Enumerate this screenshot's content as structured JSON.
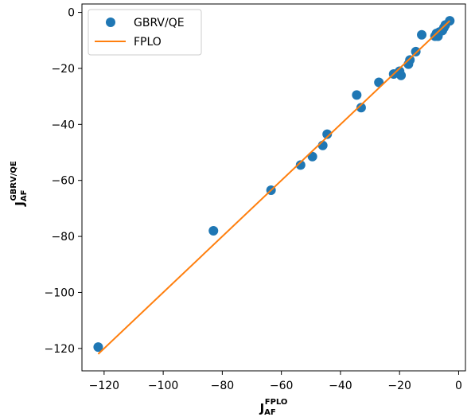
{
  "chart_data": {
    "type": "scatter",
    "xlim": [
      -127.5,
      2.3
    ],
    "ylim": [
      -128.0,
      3.0
    ],
    "xticks": [
      -120,
      -100,
      -80,
      -60,
      -40,
      -20,
      0
    ],
    "yticks": [
      0,
      -20,
      -40,
      -60,
      -80,
      -100,
      -120
    ],
    "xtick_labels": [
      "−120",
      "−100",
      "−80",
      "−60",
      "−40",
      "−20",
      "0"
    ],
    "ytick_labels": [
      "0",
      "−20",
      "−40",
      "−60",
      "−80",
      "−100",
      "−120"
    ],
    "xlabel_main": "J",
    "xlabel_sub": "AF",
    "xlabel_sup": "FPLO",
    "ylabel_main": "J",
    "ylabel_sub": "AF",
    "ylabel_sup": "GBRV/QE",
    "legend_position": "top-left",
    "grid": false,
    "series": [
      {
        "name": "GBRV/QE",
        "kind": "scatter",
        "color": "#1f77b4",
        "points": [
          [
            -122,
            -119.5
          ],
          [
            -83,
            -78
          ],
          [
            -63.5,
            -63.5
          ],
          [
            -53.5,
            -54.5
          ],
          [
            -49.5,
            -51.5
          ],
          [
            -46,
            -47.5
          ],
          [
            -44.5,
            -43.5
          ],
          [
            -34.5,
            -29.5
          ],
          [
            -33,
            -34
          ],
          [
            -27,
            -25
          ],
          [
            -22,
            -22
          ],
          [
            -20,
            -21
          ],
          [
            -19.5,
            -22.5
          ],
          [
            -17,
            -18.5
          ],
          [
            -16.5,
            -17
          ],
          [
            -14.5,
            -14
          ],
          [
            -12.5,
            -8
          ],
          [
            -8,
            -8.5
          ],
          [
            -7.5,
            -7.5
          ],
          [
            -7,
            -8.5
          ],
          [
            -6.5,
            -7
          ],
          [
            -5.5,
            -6.5
          ],
          [
            -5,
            -5.5
          ],
          [
            -4.5,
            -4.5
          ],
          [
            -3,
            -3
          ]
        ]
      },
      {
        "name": "FPLO",
        "kind": "line",
        "color": "#ff7f0e",
        "points": [
          [
            -122,
            -122
          ],
          [
            -3,
            -3
          ]
        ]
      }
    ]
  }
}
